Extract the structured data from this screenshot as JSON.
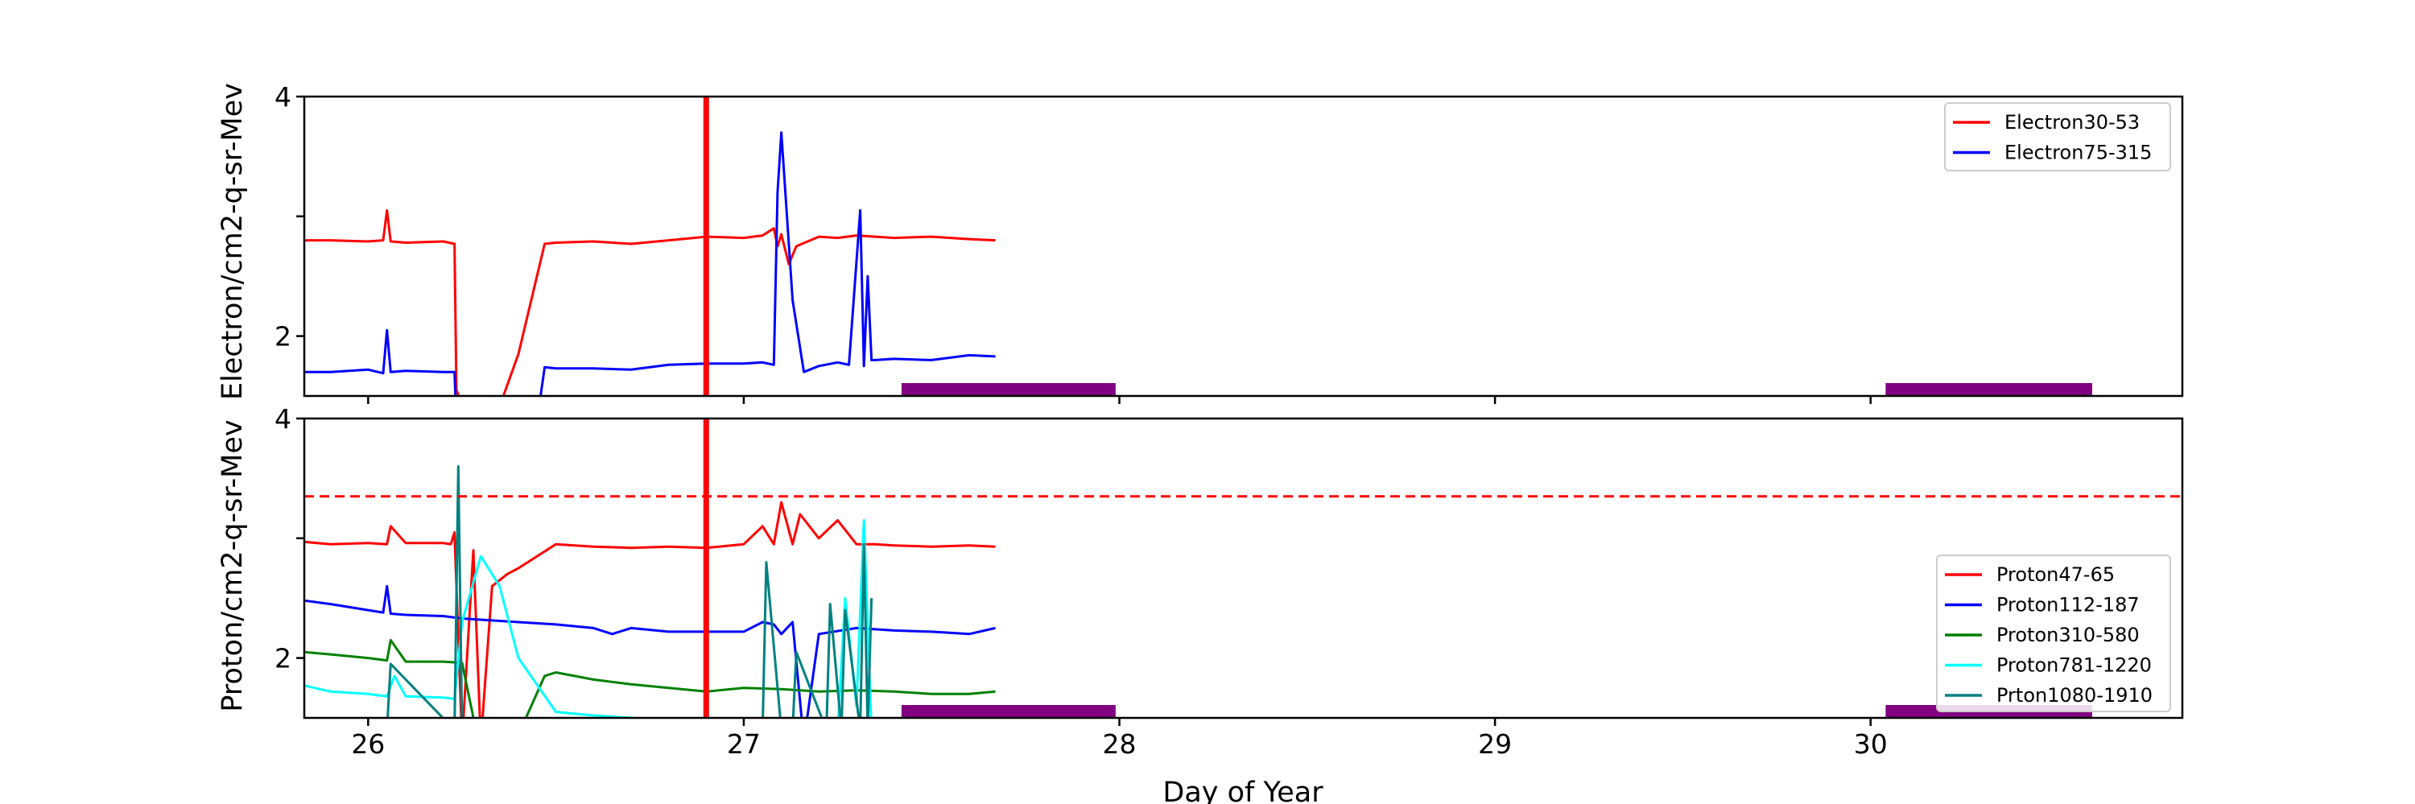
{
  "chart_data": [
    {
      "type": "line",
      "ylabel": "Electron/cm2-q-sr-Mev",
      "xlim": [
        25.83,
        30.83
      ],
      "ylim": [
        1.5,
        4.0
      ],
      "yticks": [
        2,
        3,
        4
      ],
      "ytick_labels": [
        "2",
        "",
        "4"
      ],
      "xticks": [
        26,
        27,
        28,
        29,
        30
      ],
      "legend_position": "upper-right",
      "series": [
        {
          "name": "Electron30-53",
          "color": "#ff0000",
          "x": [
            25.83,
            25.9,
            26.0,
            26.04,
            26.05,
            26.06,
            26.1,
            26.2,
            26.23,
            26.235,
            26.26,
            26.3,
            26.33,
            26.36,
            26.4,
            26.47,
            26.5,
            26.6,
            26.7,
            26.8,
            26.9,
            27.0,
            27.05,
            27.08,
            27.09,
            27.1,
            27.12,
            27.14,
            27.2,
            27.25,
            27.3,
            27.4,
            27.5,
            27.6,
            27.67
          ],
          "y": [
            2.8,
            2.8,
            2.79,
            2.8,
            3.05,
            2.79,
            2.78,
            2.79,
            2.77,
            1.55,
            1.35,
            1.45,
            1.3,
            1.5,
            1.85,
            2.77,
            2.78,
            2.79,
            2.77,
            2.8,
            2.83,
            2.82,
            2.84,
            2.9,
            2.75,
            2.85,
            2.6,
            2.75,
            2.83,
            2.82,
            2.84,
            2.82,
            2.83,
            2.81,
            2.8
          ]
        },
        {
          "name": "Electron75-315",
          "color": "#0000ff",
          "x": [
            25.83,
            25.9,
            26.0,
            26.04,
            26.05,
            26.06,
            26.1,
            26.2,
            26.23,
            26.235,
            26.3,
            26.45,
            26.47,
            26.5,
            26.6,
            26.7,
            26.8,
            26.9,
            27.0,
            27.05,
            27.08,
            27.09,
            27.1,
            27.13,
            27.16,
            27.2,
            27.25,
            27.28,
            27.31,
            27.32,
            27.33,
            27.34,
            27.35,
            27.4,
            27.5,
            27.6,
            27.67
          ],
          "y": [
            1.7,
            1.7,
            1.72,
            1.69,
            2.05,
            1.7,
            1.71,
            1.7,
            1.7,
            1.3,
            1.25,
            1.3,
            1.74,
            1.73,
            1.73,
            1.72,
            1.76,
            1.77,
            1.77,
            1.78,
            1.76,
            3.2,
            3.7,
            2.3,
            1.7,
            1.75,
            1.78,
            1.76,
            3.05,
            1.75,
            2.5,
            1.8,
            1.8,
            1.81,
            1.8,
            1.84,
            1.83
          ]
        }
      ],
      "shaded_spans": [
        [
          27.42,
          27.99
        ],
        [
          30.04,
          30.59
        ]
      ],
      "vertical_line": 26.9
    },
    {
      "type": "line",
      "xlabel": "Day of Year",
      "ylabel": "Proton/cm2-q-sr-Mev",
      "xlim": [
        25.83,
        30.83
      ],
      "ylim": [
        1.5,
        4.0
      ],
      "yticks": [
        2,
        3,
        4
      ],
      "ytick_labels": [
        "2",
        "",
        "4"
      ],
      "xticks": [
        26,
        27,
        28,
        29,
        30
      ],
      "xtick_labels": [
        "26",
        "27",
        "28",
        "29",
        "30"
      ],
      "legend_position": "lower-right",
      "threshold_line": 3.35,
      "series": [
        {
          "name": "Proton47-65",
          "color": "#ff0000",
          "x": [
            25.83,
            25.9,
            26.0,
            26.05,
            26.06,
            26.1,
            26.2,
            26.22,
            26.23,
            26.25,
            26.28,
            26.3,
            26.33,
            26.35,
            26.37,
            26.4,
            26.45,
            26.5,
            26.6,
            26.7,
            26.8,
            26.9,
            27.0,
            27.05,
            27.08,
            27.1,
            27.13,
            27.15,
            27.2,
            27.25,
            27.3,
            27.35,
            27.4,
            27.5,
            27.6,
            27.67
          ],
          "y": [
            2.97,
            2.95,
            2.96,
            2.95,
            3.1,
            2.96,
            2.96,
            2.95,
            3.05,
            1.3,
            2.9,
            1.3,
            2.6,
            2.65,
            2.7,
            2.75,
            2.85,
            2.95,
            2.93,
            2.92,
            2.93,
            2.92,
            2.95,
            3.1,
            2.95,
            3.3,
            2.95,
            3.2,
            3.0,
            3.15,
            2.95,
            2.95,
            2.94,
            2.93,
            2.94,
            2.93
          ]
        },
        {
          "name": "Proton112-187",
          "color": "#0000ff",
          "x": [
            25.83,
            25.9,
            26.0,
            26.04,
            26.05,
            26.06,
            26.1,
            26.2,
            26.25,
            26.3,
            26.4,
            26.5,
            26.6,
            26.65,
            26.7,
            26.8,
            26.9,
            27.0,
            27.05,
            27.08,
            27.1,
            27.13,
            27.16,
            27.2,
            27.3,
            27.4,
            27.5,
            27.6,
            27.67
          ],
          "y": [
            2.48,
            2.45,
            2.4,
            2.38,
            2.6,
            2.37,
            2.36,
            2.35,
            2.33,
            2.32,
            2.3,
            2.28,
            2.25,
            2.2,
            2.25,
            2.22,
            2.22,
            2.22,
            2.3,
            2.28,
            2.2,
            2.3,
            1.3,
            2.2,
            2.25,
            2.23,
            2.22,
            2.2,
            2.25
          ]
        },
        {
          "name": "Proton310-580",
          "color": "#008000",
          "x": [
            25.83,
            25.9,
            26.0,
            26.05,
            26.06,
            26.1,
            26.2,
            26.25,
            26.3,
            26.35,
            26.42,
            26.47,
            26.5,
            26.6,
            26.7,
            26.8,
            26.9,
            27.0,
            27.1,
            27.2,
            27.3,
            27.4,
            27.5,
            27.6,
            27.67
          ],
          "y": [
            2.05,
            2.03,
            2.0,
            1.98,
            2.15,
            1.97,
            1.97,
            1.96,
            1.2,
            1.3,
            1.5,
            1.85,
            1.88,
            1.82,
            1.78,
            1.75,
            1.72,
            1.75,
            1.74,
            1.72,
            1.73,
            1.72,
            1.7,
            1.7,
            1.72
          ]
        },
        {
          "name": "Proton781-1220",
          "color": "#00ffff",
          "x": [
            25.83,
            25.9,
            26.0,
            26.05,
            26.07,
            26.1,
            26.2,
            26.23,
            26.25,
            26.3,
            26.35,
            26.4,
            26.5,
            26.6,
            26.7,
            27.25,
            27.27,
            27.3,
            27.32,
            27.34,
            27.36
          ],
          "y": [
            1.77,
            1.72,
            1.7,
            1.68,
            1.85,
            1.68,
            1.67,
            1.66,
            2.3,
            2.85,
            2.6,
            2.0,
            1.55,
            1.52,
            1.5,
            1.4,
            2.5,
            1.6,
            3.15,
            1.4,
            1.4
          ]
        },
        {
          "name": "Prton1080-1910",
          "color": "#008080",
          "x": [
            26.05,
            26.06,
            26.23,
            26.24,
            26.25,
            26.27,
            27.05,
            27.06,
            27.1,
            27.13,
            27.14,
            27.22,
            27.23,
            27.26,
            27.27,
            27.31,
            27.32,
            27.33,
            27.34
          ],
          "y": [
            1.4,
            1.95,
            1.4,
            3.6,
            1.4,
            1.4,
            1.4,
            2.8,
            1.4,
            1.4,
            2.05,
            1.4,
            2.45,
            1.4,
            2.4,
            1.4,
            2.95,
            1.4,
            2.5
          ]
        }
      ],
      "shaded_spans": [
        [
          27.42,
          27.99
        ],
        [
          30.04,
          30.59
        ]
      ],
      "vertical_line": 26.9
    }
  ]
}
